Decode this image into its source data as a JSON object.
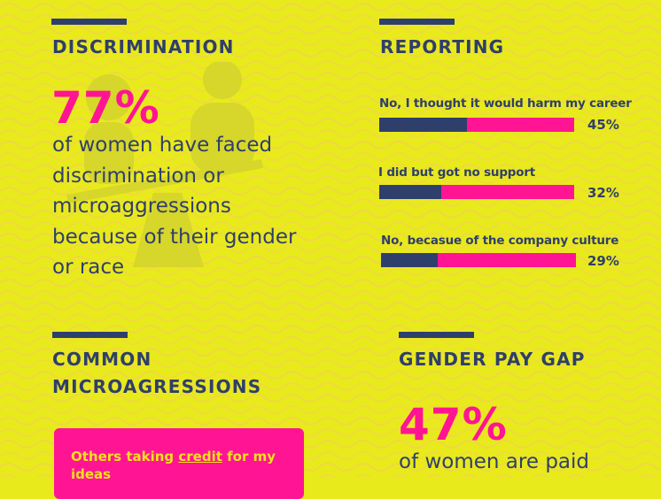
{
  "discrimination": {
    "heading": "DISCRIMINATION",
    "stat": "77%",
    "description": "of women have faced discrimination or microaggressions because of their gender or race",
    "watermark_icon": "person-on-scale-icon"
  },
  "reporting": {
    "heading": "REPORTING",
    "bars": [
      {
        "label": "No, I thought it would harm my career",
        "value": 45,
        "display": "45%"
      },
      {
        "label": "I did but got no support",
        "value": 32,
        "display": "32%"
      },
      {
        "label": "No, becasue of the company culture",
        "value": 29,
        "display": "29%"
      }
    ]
  },
  "microaggressions": {
    "heading_line1": "COMMON",
    "heading_line2": "MICROAGRESSIONS",
    "card": {
      "text_before": "Others taking ",
      "link": "credit",
      "text_after": " for my ideas"
    }
  },
  "pay_gap": {
    "heading": "GENDER PAY GAP",
    "stat": "47%",
    "description": "of women are paid"
  },
  "colors": {
    "background": "#e8ea1c",
    "navy": "#2f3f6b",
    "magenta": "#ff1493",
    "card_text": "#f2e11c"
  }
}
